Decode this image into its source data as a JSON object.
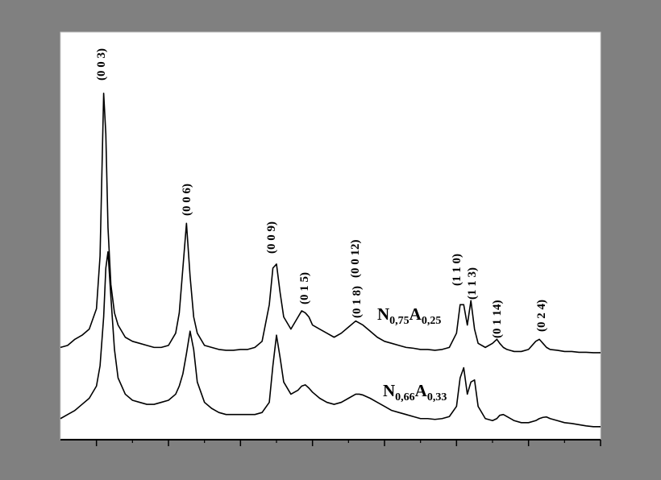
{
  "chart_data": {
    "type": "line",
    "x": [
      5,
      6,
      7,
      8,
      9,
      10,
      10.5,
      11,
      11.3,
      11.6,
      12,
      12.5,
      13,
      14,
      15,
      16,
      17,
      18,
      19,
      20,
      21,
      21.5,
      22,
      22.5,
      23,
      23.5,
      24,
      25,
      26,
      27,
      28,
      29,
      30,
      31,
      32,
      33,
      34,
      34.5,
      35,
      35.5,
      36,
      37,
      38,
      38.5,
      39,
      39.5,
      40,
      41,
      42,
      43,
      44,
      45,
      46,
      46.5,
      47,
      48,
      49,
      50,
      51,
      52,
      53,
      54,
      55,
      56,
      57,
      58,
      59,
      60,
      60.5,
      61,
      61.5,
      62,
      62.5,
      63,
      64,
      65,
      65.6,
      66,
      66.5,
      67,
      68,
      69,
      70,
      71,
      71.5,
      72,
      72.5,
      73,
      74,
      75,
      76,
      77,
      78,
      79,
      80
    ],
    "series": [
      {
        "label_parts": [
          "N",
          "0,75",
          "A",
          "0,25"
        ],
        "color": "#000000",
        "values": [
          22.5,
          23,
          24.5,
          25.5,
          27,
          32,
          45,
          85,
          75,
          52,
          38,
          31,
          28,
          25,
          24,
          23.5,
          23,
          22.5,
          22.5,
          23,
          26,
          31,
          42,
          53,
          40,
          30,
          26,
          23,
          22.5,
          22,
          21.8,
          21.8,
          22,
          22,
          22.5,
          24,
          33,
          42,
          43,
          36,
          30,
          27,
          30,
          31.5,
          31,
          30,
          28,
          27,
          26,
          25,
          26,
          27.5,
          29,
          28.5,
          28,
          26.5,
          25,
          24,
          23.5,
          23,
          22.5,
          22.3,
          22,
          22,
          21.8,
          22,
          22.5,
          26,
          33,
          33,
          28,
          34,
          27,
          23.5,
          22.5,
          23.5,
          24.5,
          23.5,
          22.5,
          22,
          21.5,
          21.5,
          22,
          24,
          24.5,
          23.5,
          22.5,
          22,
          21.8,
          21.5,
          21.5,
          21.3,
          21.3,
          21.2,
          21.2
        ]
      },
      {
        "label_parts": [
          "N",
          "0,66",
          "A",
          "0,33"
        ],
        "color": "#000000",
        "values": [
          5,
          6,
          7,
          8.5,
          10,
          13,
          18,
          30,
          42,
          46,
          35,
          22,
          15,
          11,
          9.5,
          9,
          8.5,
          8.5,
          9,
          9.5,
          11,
          13,
          16,
          21,
          26.5,
          22,
          14,
          9,
          7.5,
          6.5,
          6,
          6,
          6,
          6,
          6,
          6.5,
          9,
          18,
          25.5,
          20,
          14,
          11,
          12,
          13,
          13.3,
          12.5,
          11.5,
          10,
          9,
          8.5,
          9,
          10,
          11,
          11,
          10.8,
          10,
          9,
          8,
          7,
          6.5,
          6,
          5.5,
          5,
          5,
          4.8,
          5,
          5.5,
          8,
          15,
          17.5,
          11,
          14,
          14.5,
          8,
          5,
          4.5,
          5,
          5.8,
          6,
          5.5,
          4.5,
          4,
          4,
          4.5,
          5,
          5.3,
          5.4,
          5,
          4.5,
          4,
          3.8,
          3.5,
          3.2,
          3,
          3
        ]
      }
    ],
    "peak_labels": [
      "(0 0 3)",
      "(0 0 6)",
      "(0 0 9)",
      "(0 1 5)",
      "(0 0 12)",
      "(0 1 8)",
      "(1 1 0)",
      "(1 1 3)",
      "(0 1 14)",
      "(0 2 4)"
    ],
    "xlim": [
      5,
      80
    ],
    "xticks": [
      10,
      20,
      30,
      40,
      50,
      60,
      70,
      80
    ],
    "xminorticks": [
      15,
      25,
      35,
      45,
      55,
      65,
      75
    ],
    "ylim": [
      0,
      100
    ]
  }
}
